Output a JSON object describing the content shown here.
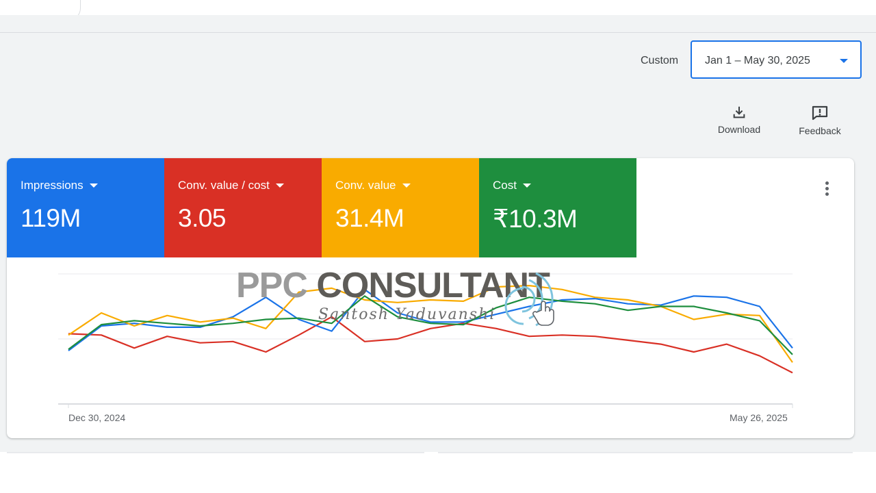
{
  "date_range": {
    "label": "Custom",
    "value": "Jan 1 – May 30, 2025"
  },
  "toolbar": {
    "download_label": "Download",
    "feedback_label": "Feedback"
  },
  "metrics": [
    {
      "label": "Impressions",
      "value": "119M",
      "color": "#1a73e8"
    },
    {
      "label": "Conv. value / cost",
      "value": "3.05",
      "color": "#d93025"
    },
    {
      "label": "Conv. value",
      "value": "31.4M",
      "color": "#f9ab00"
    },
    {
      "label": "Cost",
      "value": "₹10.3M",
      "color": "#1e8e3e"
    }
  ],
  "watermark": {
    "title_part1": "PPC ",
    "title_part2": "CONSULTANT",
    "subtitle": "Santosh Yaduvanshi"
  },
  "chart_data": {
    "type": "line",
    "x_start_label": "Dec 30, 2024",
    "x_end_label": "May 26, 2025",
    "gridlines": true,
    "series": [
      {
        "name": "Impressions",
        "color": "#1a73e8",
        "values": [
          0.41,
          0.6,
          0.62,
          0.59,
          0.59,
          0.67,
          0.82,
          0.65,
          0.56,
          0.88,
          0.7,
          0.63,
          0.63,
          0.69,
          0.75,
          0.8,
          0.81,
          0.77,
          0.76,
          0.83,
          0.82,
          0.75,
          0.43
        ]
      },
      {
        "name": "Conv. value / cost",
        "color": "#d93025",
        "values": [
          0.54,
          0.53,
          0.43,
          0.52,
          0.47,
          0.48,
          0.4,
          0.53,
          0.67,
          0.48,
          0.5,
          0.58,
          0.62,
          0.58,
          0.52,
          0.53,
          0.52,
          0.49,
          0.46,
          0.4,
          0.46,
          0.37,
          0.24
        ]
      },
      {
        "name": "Conv. value",
        "color": "#f9ab00",
        "values": [
          0.53,
          0.7,
          0.6,
          0.68,
          0.63,
          0.66,
          0.58,
          0.86,
          0.89,
          0.8,
          0.78,
          0.8,
          0.79,
          0.9,
          0.91,
          0.88,
          0.82,
          0.8,
          0.75,
          0.65,
          0.69,
          0.68,
          0.32
        ]
      },
      {
        "name": "Cost",
        "color": "#1e8e3e",
        "values": [
          0.42,
          0.61,
          0.64,
          0.62,
          0.6,
          0.62,
          0.65,
          0.66,
          0.62,
          0.83,
          0.67,
          0.62,
          0.61,
          0.74,
          0.82,
          0.79,
          0.77,
          0.72,
          0.75,
          0.75,
          0.7,
          0.64,
          0.38
        ]
      }
    ]
  }
}
